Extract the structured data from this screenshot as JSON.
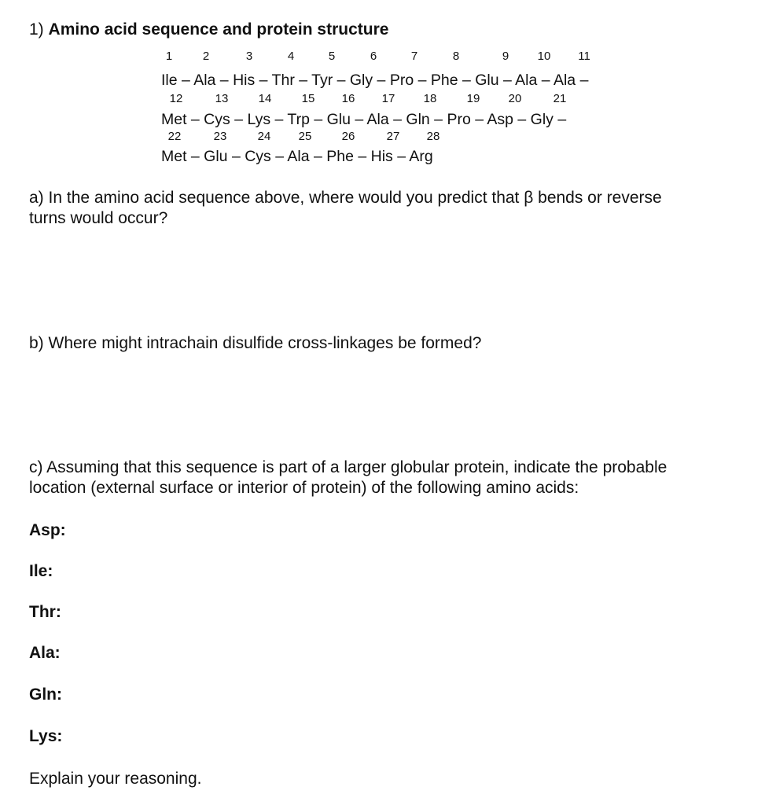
{
  "title_prefix": "1)",
  "title": "Amino acid sequence and protein structure",
  "sequence": {
    "row1": {
      "numbers": [
        "1",
        "2",
        "3",
        "4",
        "5",
        "6",
        "7",
        "8",
        "9",
        "10",
        "11"
      ],
      "text": "Ile – Ala – His – Thr – Tyr – Gly – Pro – Phe – Glu – Ala – Ala –"
    },
    "row2": {
      "numbers": [
        "12",
        "13",
        "14",
        "15",
        "16",
        "17",
        "18",
        "19",
        "20",
        "21"
      ],
      "text": "Met – Cys – Lys – Trp – Glu – Ala – Gln – Pro – Asp – Gly –"
    },
    "row3": {
      "numbers": [
        "22",
        "23",
        "24",
        "25",
        "26",
        "27",
        "28"
      ],
      "text": "Met – Glu – Cys – Ala – Phe – His – Arg"
    }
  },
  "questions": {
    "a_line1": "a) In the amino acid sequence above, where would you predict that β bends or reverse",
    "a_line2": "turns would occur?",
    "b": "b) Where might intrachain disulfide cross-linkages be formed?",
    "c_line1": "c) Assuming that this sequence is part of a larger globular protein, indicate the probable",
    "c_line2": "location (external surface or interior of protein) of the following amino acids:",
    "labels": [
      "Asp:",
      "Ile:",
      "Thr:",
      "Ala:",
      "Gln:",
      "Lys:"
    ],
    "explain": "Explain your reasoning."
  }
}
